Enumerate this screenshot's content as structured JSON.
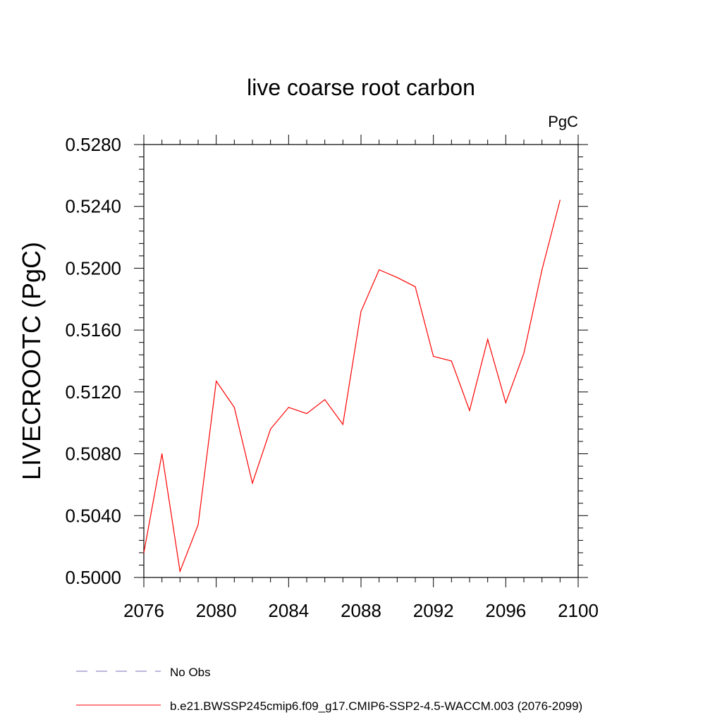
{
  "chart_data": {
    "type": "line",
    "title": "live coarse root carbon",
    "units": "PgC",
    "xlabel": "",
    "ylabel": "LIVECROOTC  (PgC)",
    "xlim": [
      2076,
      2100
    ],
    "ylim": [
      0.5,
      0.528
    ],
    "x_ticks": [
      "2076",
      "2080",
      "2084",
      "2088",
      "2092",
      "2096",
      "2100"
    ],
    "y_ticks": [
      "0.5000",
      "0.5040",
      "0.5080",
      "0.5120",
      "0.5160",
      "0.5200",
      "0.5240",
      "0.5280"
    ],
    "grid": false,
    "legend_position": "bottom",
    "series": [
      {
        "name": "b.e21.BWSSP245cmip6.f09_g17.CMIP6-SSP2-4.5-WACCM.003 (2076-2099)",
        "color": "#ff0000",
        "style": "solid",
        "x": [
          2076,
          2077,
          2078,
          2079,
          2080,
          2081,
          2082,
          2083,
          2084,
          2085,
          2086,
          2087,
          2088,
          2089,
          2090,
          2091,
          2092,
          2093,
          2094,
          2095,
          2096,
          2097,
          2098,
          2099
        ],
        "values": [
          0.5016,
          0.508,
          0.5004,
          0.5034,
          0.5127,
          0.511,
          0.5061,
          0.5096,
          0.511,
          0.5106,
          0.5115,
          0.5099,
          0.5172,
          0.5199,
          0.5194,
          0.5188,
          0.5143,
          0.514,
          0.5108,
          0.5154,
          0.5113,
          0.5145,
          0.5199,
          0.5244
        ]
      }
    ],
    "legend": [
      {
        "label": "No Obs",
        "color": "#7a6fb8",
        "style": "dashed"
      },
      {
        "label": "b.e21.BWSSP245cmip6.f09_g17.CMIP6-SSP2-4.5-WACCM.003 (2076-2099)",
        "color": "#ff0000",
        "style": "solid"
      }
    ]
  }
}
